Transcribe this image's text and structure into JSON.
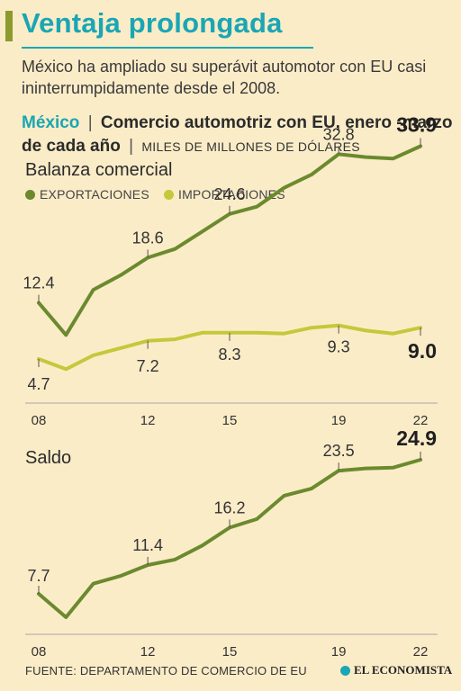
{
  "header": {
    "title": "Ventaja prolongada",
    "subtitle": "México ha ampliado su superávit automotor con EU casi ininterrumpidamente desde el 2008.",
    "country": "México",
    "sep": "|",
    "chart_title": "Comercio automotriz con EU, enero -marzo de cada año",
    "units": "MILES DE MILLONES DE DÓLARES"
  },
  "colors": {
    "exports": "#6b8a2e",
    "imports": "#c4c93a",
    "accent": "#1aa6b4"
  },
  "footer": {
    "source": "FUENTE: DEPARTAMENTO DE COMERCIO DE EU",
    "brand": "EL ECONOMISTA"
  },
  "chart_data": [
    {
      "type": "line",
      "title": "Balanza comercial",
      "x": [
        2008,
        2009,
        2010,
        2011,
        2012,
        2013,
        2014,
        2015,
        2016,
        2017,
        2018,
        2019,
        2020,
        2021,
        2022
      ],
      "tick_labels": [
        "08",
        "12",
        "15",
        "19",
        "22"
      ],
      "tick_values": [
        2008,
        2012,
        2015,
        2019,
        2022
      ],
      "series": [
        {
          "name": "EXPORTACIONES",
          "values": [
            12.4,
            8.0,
            14.2,
            16.2,
            18.6,
            19.8,
            22.2,
            24.6,
            25.6,
            28.2,
            30.0,
            32.8,
            32.4,
            32.2,
            33.9
          ],
          "labels": {
            "2008": "12.4",
            "2012": "18.6",
            "2015": "24.6",
            "2019": "32.8",
            "2022": "33.9"
          }
        },
        {
          "name": "IMPORTACIONES",
          "values": [
            4.7,
            3.3,
            5.2,
            6.2,
            7.2,
            7.4,
            8.3,
            8.3,
            8.3,
            8.2,
            9.0,
            9.3,
            8.6,
            8.2,
            9.0
          ],
          "labels": {
            "2008": "4.7",
            "2012": "7.2",
            "2015": "8.3",
            "2019": "9.3",
            "2022": "9.0"
          }
        }
      ]
    },
    {
      "type": "line",
      "title": "Saldo",
      "x": [
        2008,
        2009,
        2010,
        2011,
        2012,
        2013,
        2014,
        2015,
        2016,
        2017,
        2018,
        2019,
        2020,
        2021,
        2022
      ],
      "tick_labels": [
        "08",
        "12",
        "15",
        "19",
        "22"
      ],
      "tick_values": [
        2008,
        2012,
        2015,
        2019,
        2022
      ],
      "series": [
        {
          "name": "Saldo",
          "values": [
            7.7,
            4.7,
            9.0,
            10.0,
            11.4,
            12.1,
            13.9,
            16.2,
            17.3,
            20.3,
            21.2,
            23.5,
            23.8,
            23.9,
            24.9
          ],
          "labels": {
            "2008": "7.7",
            "2012": "11.4",
            "2015": "16.2",
            "2019": "23.5",
            "2022": "24.9"
          }
        }
      ]
    }
  ]
}
